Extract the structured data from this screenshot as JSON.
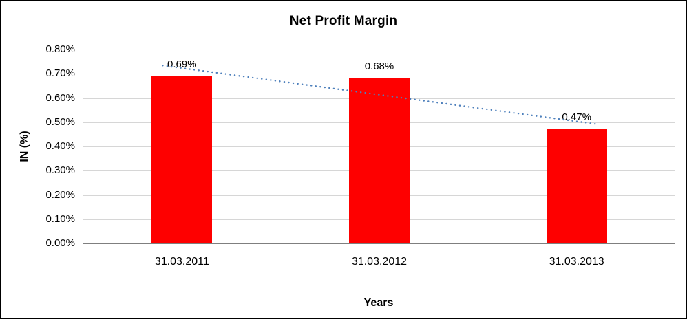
{
  "chart_data": {
    "type": "bar",
    "title": "Net Profit Margin",
    "categories": [
      "31.03.2011",
      "31.03.2012",
      "31.03.2013"
    ],
    "values": [
      0.69,
      0.68,
      0.47
    ],
    "data_labels": [
      "0.69%",
      "0.68%",
      "0.47%"
    ],
    "xlabel": "Years",
    "ylabel": "IN (%)",
    "ylim": [
      0,
      0.8
    ],
    "ytick_step": 0.1,
    "ytick_labels": [
      "0.00%",
      "0.10%",
      "0.20%",
      "0.30%",
      "0.40%",
      "0.50%",
      "0.60%",
      "0.70%",
      "0.80%"
    ],
    "bar_color": "#fe0000",
    "grid": true,
    "legend": "none",
    "trendline": {
      "type": "linear",
      "color": "#4e80bc",
      "style": "dotted"
    }
  }
}
